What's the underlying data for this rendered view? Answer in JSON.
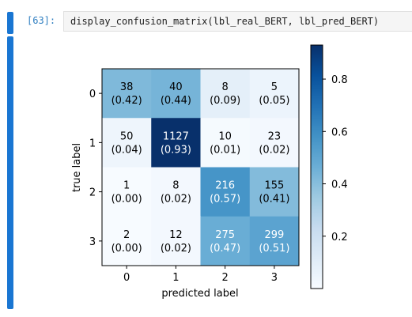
{
  "cell": {
    "prompt": "[63]:",
    "code": "display_confusion_matrix(lbl_real_BERT, lbl_pred_BERT)"
  },
  "chart_data": {
    "type": "heatmap",
    "xlabel": "predicted label",
    "ylabel": "true label",
    "x_ticks": [
      "0",
      "1",
      "2",
      "3"
    ],
    "y_ticks": [
      "0",
      "1",
      "2",
      "3"
    ],
    "counts": [
      [
        38,
        40,
        8,
        5
      ],
      [
        50,
        1127,
        10,
        23
      ],
      [
        1,
        8,
        216,
        155
      ],
      [
        2,
        12,
        275,
        299
      ]
    ],
    "normalized": [
      [
        "0.42",
        "0.44",
        "0.09",
        "0.05"
      ],
      [
        "0.04",
        "0.93",
        "0.01",
        "0.02"
      ],
      [
        "0.00",
        "0.02",
        "0.57",
        "0.41"
      ],
      [
        "0.00",
        "0.02",
        "0.47",
        "0.51"
      ]
    ],
    "colormap": "Blues",
    "colorbar": {
      "range": [
        0.0,
        0.93
      ],
      "ticks": [
        "0.2",
        "0.4",
        "0.6",
        "0.8"
      ],
      "tick_values": [
        0.2,
        0.4,
        0.6,
        0.8
      ]
    }
  }
}
